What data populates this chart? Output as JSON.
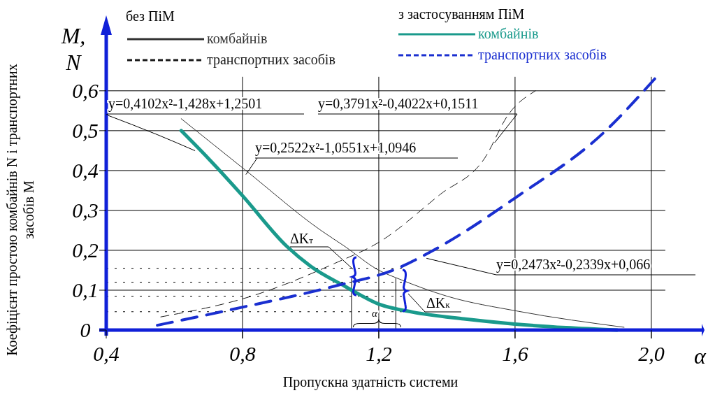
{
  "chart_data": {
    "type": "line",
    "xlabel": "Пропускна здатність системи",
    "ylabel": "Коефіцієнт простою комбайнів N і транспортних засобів M",
    "xlim": [
      0.4,
      2.15
    ],
    "ylim": [
      0,
      0.74
    ],
    "xticks": [
      {
        "value": 0.4,
        "label": "0,4"
      },
      {
        "value": 0.8,
        "label": "0,8"
      },
      {
        "value": 1.2,
        "label": "1,2"
      },
      {
        "value": 1.6,
        "label": "1,6"
      },
      {
        "value": 2.0,
        "label": "2,0"
      }
    ],
    "yticks": [
      {
        "value": 0,
        "label": "0"
      },
      {
        "value": 0.1,
        "label": "0,1"
      },
      {
        "value": 0.2,
        "label": "0,2"
      },
      {
        "value": 0.3,
        "label": "0,3"
      },
      {
        "value": 0.4,
        "label": "0,4"
      },
      {
        "value": 0.5,
        "label": "0,5"
      },
      {
        "value": 0.6,
        "label": "0,6"
      }
    ],
    "grid": true,
    "legend": "top",
    "marker": "none",
    "series": [
      {
        "name": "комбайнів",
        "color": "#333333",
        "line_style": "solid",
        "x": [
          0.62,
          0.81,
          1.03,
          1.1,
          1.2,
          1.26,
          1.4,
          1.61,
          1.92
        ],
        "values": [
          0.53,
          0.4,
          0.25,
          0.21,
          0.15,
          0.128,
          0.085,
          0.047,
          0.007
        ]
      },
      {
        "name": "транспортних засобів",
        "color": "#1a1a1a",
        "line_style": "dashed",
        "x": [
          0.56,
          0.83,
          1.07,
          1.2,
          1.38,
          1.51,
          1.58,
          1.66
        ],
        "values": [
          0.033,
          0.086,
          0.167,
          0.22,
          0.34,
          0.43,
          0.54,
          0.6
        ]
      },
      {
        "color": "#000000",
        "line_style": "solid",
        "x": [
          0.4,
          0.55,
          0.66
        ],
        "values": [
          0.54,
          0.49,
          0.45
        ]
      },
      {
        "name": "комбайнів",
        "color": "#1a9a8c",
        "line_style": "solid",
        "x": [
          0.62,
          0.7,
          0.8,
          0.93,
          1.0,
          1.1,
          1.2,
          1.3,
          1.45,
          1.6,
          1.75,
          1.9
        ],
        "values": [
          0.5,
          0.43,
          0.337,
          0.21,
          0.16,
          0.11,
          0.065,
          0.045,
          0.028,
          0.015,
          0.006,
          0.0
        ]
      },
      {
        "name": "транспортних засобів",
        "color": "#1a2fd0",
        "line_style": "dashed",
        "x": [
          0.55,
          0.76,
          1.07,
          1.25,
          1.36,
          1.61,
          1.86,
          2.01
        ],
        "values": [
          0.012,
          0.05,
          0.11,
          0.153,
          0.2,
          0.337,
          0.495,
          0.63
        ]
      }
    ],
    "ref_lines": [
      {
        "axis": "y",
        "value": 0.155,
        "color": "#000000",
        "line_style": "dotted"
      },
      {
        "axis": "y",
        "value": 0.12,
        "color": "#000000",
        "line_style": "dotted"
      },
      {
        "axis": "y",
        "value": 0.085,
        "color": "#000000",
        "line_style": "dotted"
      },
      {
        "axis": "y",
        "value": 0.046,
        "color": "#000000",
        "line_style": "dotted"
      },
      {
        "axis": "x",
        "value": 1.12,
        "color": "#000000",
        "line_style": "solid"
      },
      {
        "axis": "x",
        "value": 1.25,
        "color": "#000000",
        "line_style": "solid"
      }
    ],
    "annotations": [
      {
        "text": "y=0,4102x²-1,428x+1,2501",
        "x": 0.4,
        "y": 0.54
      },
      {
        "text": "y=0,3791x²-0,4022x+0,1511",
        "x": 1.54,
        "y": 0.47
      },
      {
        "text": "y=0,2522x²-1,0551x+1,0946",
        "x": 0.81,
        "y": 0.39
      },
      {
        "text": "y=0,2473x²-0,2339x+0,066",
        "x": 1.34,
        "y": 0.18
      },
      "ΔKт",
      "ΔKк",
      "α",
      "M, N",
      "α",
      "без ПіМ",
      "з застосуванням ПіМ"
    ]
  }
}
